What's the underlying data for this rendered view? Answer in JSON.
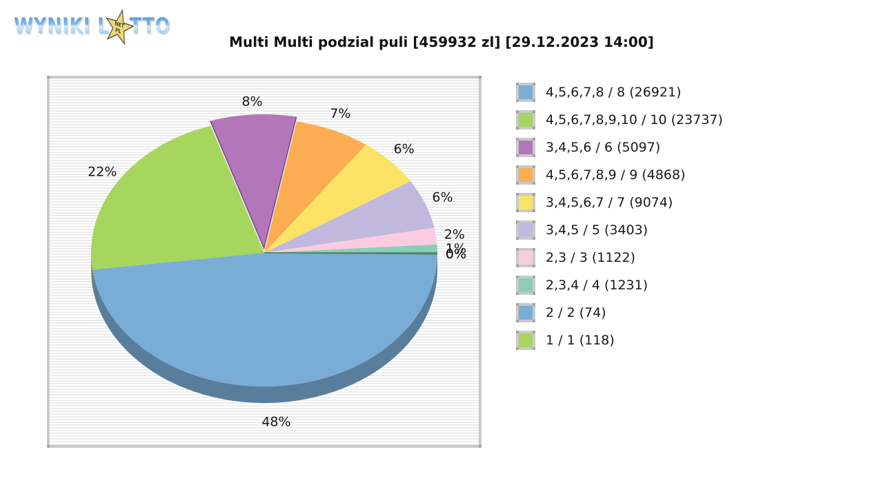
{
  "logo": {
    "word1": "WYNIKI",
    "lotto_prefix": "L",
    "lotto_suffix": "TTO",
    "star_line1": "NET",
    "star_line2": "PL",
    "star_color": "#eed979",
    "letter_color_top": "#4f95d8",
    "letter_color_bottom": "#bfe0f5"
  },
  "title": "Multi Multi podzial puli [459932 zl] [29.12.2023 14:00]",
  "chart_data": {
    "type": "pie",
    "title": "Multi Multi podzial puli [459932 zl] [29.12.2023 14:00]",
    "pool_total_zl": "459932",
    "draw_datetime": "29.12.2023 14:00",
    "style": "3d-pie",
    "start_angle_deg": 0,
    "direction": "clockwise",
    "legend_position": "right",
    "labels_shown_as": "percent",
    "slices": [
      {
        "label": "4,5,6,7,8 / 8 (26921)",
        "numbers_hit": "4,5,6,7,8",
        "of": "8",
        "winners": 26921,
        "percent": 48,
        "color": "#7aadd5"
      },
      {
        "label": "4,5,6,7,8,9,10 / 10 (23737)",
        "numbers_hit": "4,5,6,7,8,9,10",
        "of": "10",
        "winners": 23737,
        "percent": 22,
        "color": "#a6d65d"
      },
      {
        "label": "3,4,5,6 / 6 (5097)",
        "numbers_hit": "3,4,5,6",
        "of": "6",
        "winners": 5097,
        "percent": 8,
        "color": "#b377b9",
        "exploded": true,
        "edge_color": "#7d5290"
      },
      {
        "label": "4,5,6,7,8,9 / 9 (4868)",
        "numbers_hit": "4,5,6,7,8,9",
        "of": "9",
        "winners": 4868,
        "percent": 7,
        "color": "#fcad52"
      },
      {
        "label": "3,4,5,6,7 / 7 (9074)",
        "numbers_hit": "3,4,5,6,7",
        "of": "7",
        "winners": 9074,
        "percent": 6,
        "color": "#fbe465"
      },
      {
        "label": "3,4,5 / 5 (3403)",
        "numbers_hit": "3,4,5",
        "of": "5",
        "winners": 3403,
        "percent": 6,
        "color": "#c1b9dd"
      },
      {
        "label": "2,3 / 3 (1122)",
        "numbers_hit": "2,3",
        "of": "3",
        "winners": 1122,
        "percent": 2,
        "color": "#fbccdf"
      },
      {
        "label": "2,3,4 / 4 (1231)",
        "numbers_hit": "2,3,4",
        "of": "4",
        "winners": 1231,
        "percent": 1,
        "color": "#8aceb8"
      },
      {
        "label": "2 / 2 (74)",
        "numbers_hit": "2",
        "of": "2",
        "winners": 74,
        "percent": 0,
        "color": "#7aadd5"
      },
      {
        "label": "1 / 1 (118)",
        "numbers_hit": "1",
        "of": "1",
        "winners": 118,
        "percent": 0,
        "color": "#a6d65d",
        "edge_color": "#53876d"
      }
    ],
    "percent_labels": [
      "48%",
      "22%",
      "8%",
      "7%",
      "6%",
      "6%",
      "2%",
      "1%",
      "0%",
      "0%"
    ]
  }
}
